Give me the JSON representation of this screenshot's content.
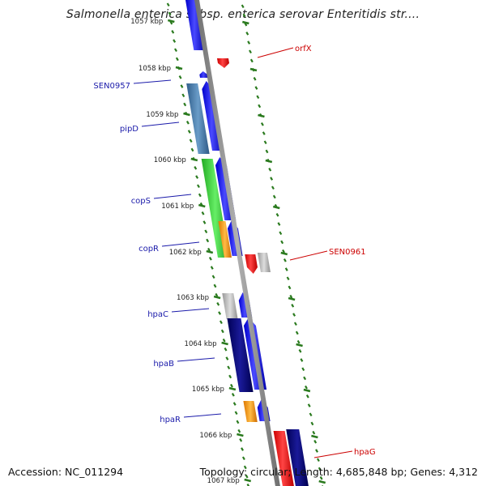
{
  "title": "Salmonella enterica subsp. enterica serovar Enteritidis str....",
  "footer": {
    "accession": "Accession: NC_011294",
    "topology": "Topology: circular; Length: 4,685,848 bp; Genes: 4,312"
  },
  "colors": {
    "backbone": "#8a8a8a",
    "tick": "#2a7a1e",
    "left_label": "#1a1aaa",
    "right_label": "#cc0000",
    "forward_cds": "#1a1aee",
    "reverse_cds": "#ee1111",
    "gray_feature": "#b8b8b8",
    "navy_feature": "#00007a",
    "steel_feature": "#4a7fae",
    "green_feature": "#44cc44",
    "orange_feature": "#ff9900"
  },
  "kbp_labels": [
    "1057 kbp",
    "1058 kbp",
    "1059 kbp",
    "1060 kbp",
    "1061 kbp",
    "1062 kbp",
    "1063 kbp",
    "1064 kbp",
    "1065 kbp",
    "1066 kbp",
    "1067 kbp"
  ],
  "gene_labels": {
    "left": [
      "SEN0957",
      "pipD",
      "copS",
      "copR",
      "hpaC",
      "hpaB",
      "hpaR"
    ],
    "right": [
      "orfX",
      "SEN0961",
      "hpaG"
    ]
  }
}
